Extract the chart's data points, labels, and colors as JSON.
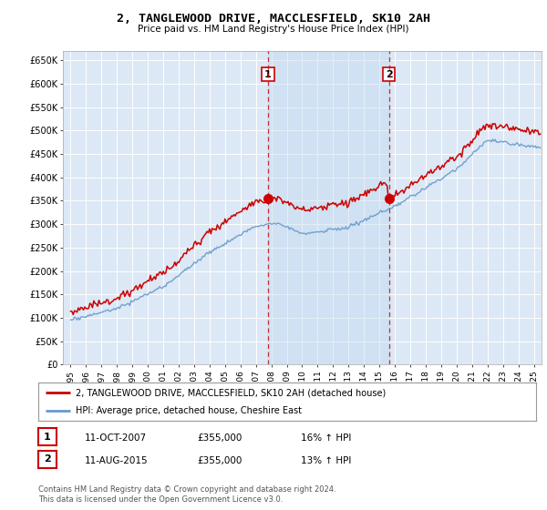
{
  "title": "2, TANGLEWOOD DRIVE, MACCLESFIELD, SK10 2AH",
  "subtitle": "Price paid vs. HM Land Registry's House Price Index (HPI)",
  "ylabel_ticks": [
    "£0",
    "£50K",
    "£100K",
    "£150K",
    "£200K",
    "£250K",
    "£300K",
    "£350K",
    "£400K",
    "£450K",
    "£500K",
    "£550K",
    "£600K",
    "£650K"
  ],
  "ytick_values": [
    0,
    50000,
    100000,
    150000,
    200000,
    250000,
    300000,
    350000,
    400000,
    450000,
    500000,
    550000,
    600000,
    650000
  ],
  "ylim": [
    0,
    670000
  ],
  "xlim_start": 1994.5,
  "xlim_end": 2025.5,
  "xtick_years": [
    1995,
    1996,
    1997,
    1998,
    1999,
    2000,
    2001,
    2002,
    2003,
    2004,
    2005,
    2006,
    2007,
    2008,
    2009,
    2010,
    2011,
    2012,
    2013,
    2014,
    2015,
    2016,
    2017,
    2018,
    2019,
    2020,
    2021,
    2022,
    2023,
    2024,
    2025
  ],
  "sale1_x": 2007.78,
  "sale1_y": 355000,
  "sale2_x": 2015.61,
  "sale2_y": 355000,
  "sale_color": "#cc0000",
  "hpi_color": "#6699cc",
  "vline_color": "#cc0000",
  "shade_color": "#d0e4f7",
  "legend_label_sale": "2, TANGLEWOOD DRIVE, MACCLESFIELD, SK10 2AH (detached house)",
  "legend_label_hpi": "HPI: Average price, detached house, Cheshire East",
  "table_row1": [
    "1",
    "11-OCT-2007",
    "£355,000",
    "16% ↑ HPI"
  ],
  "table_row2": [
    "2",
    "11-AUG-2015",
    "£355,000",
    "13% ↑ HPI"
  ],
  "footer": "Contains HM Land Registry data © Crown copyright and database right 2024.\nThis data is licensed under the Open Government Licence v3.0.",
  "bg_color": "#ffffff",
  "plot_bg_color": "#dce8f5",
  "grid_color": "#ffffff"
}
